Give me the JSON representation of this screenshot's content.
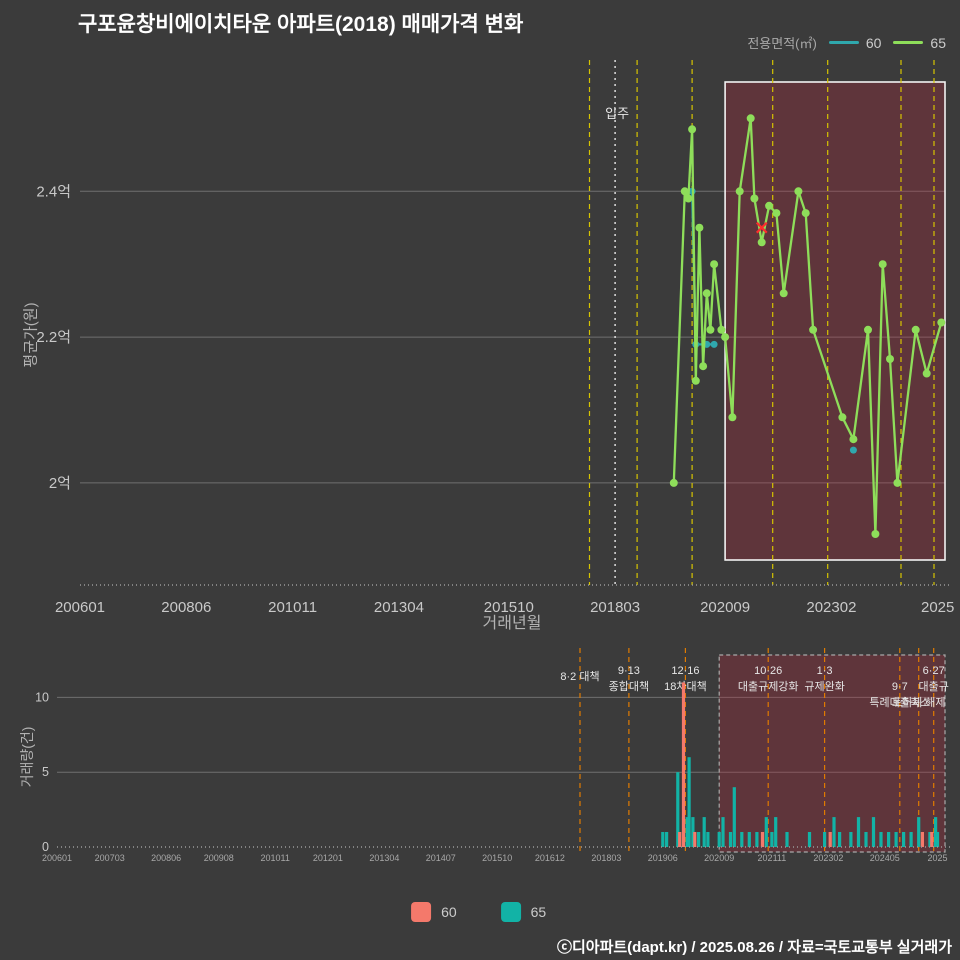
{
  "page": {
    "title": "구포윤창비에이치타운 아파트(2018) 매매가격 변화",
    "footer": "ⓒ디아파트(dapt.kr) / 2025.08.26 / 자료=국토교통부 실거래가"
  },
  "legend_top": {
    "label": "전용면적(㎡)",
    "items": [
      {
        "name": "60",
        "color": "#2fa8ad"
      },
      {
        "name": "65",
        "color": "#8ede5a"
      }
    ]
  },
  "legend_bottom": {
    "items": [
      {
        "name": "60",
        "color": "#f4796b"
      },
      {
        "name": "65",
        "color": "#12b3a6"
      }
    ]
  },
  "colors": {
    "background": "#3b3b3b",
    "grid": "#6f6f6f",
    "axis_dotted": "#999999",
    "tick_label": "#c9c9c9",
    "small_tick_label": "#a8a8a8",
    "axis_title": "#b3b3b3",
    "policy_line_top": "#d6c400",
    "policy_line_bottom": "#e07b00",
    "movein_line": "#e8e8e8",
    "annotation_text": "#e6e6e6",
    "highlight_fill": "rgba(190,40,60,0.28)",
    "highlight_border_top": "#f2f2f2",
    "highlight_border_bottom": "#a9a9a9",
    "marker_x": "#ff2d2d"
  },
  "chart_data": [
    {
      "type": "line",
      "name": "price-history",
      "ylabel": "평균가(원)",
      "xlabel": "거래년월",
      "x_range": [
        "200601",
        "202509"
      ],
      "x_ticks": [
        {
          "label": "200601",
          "m": "200601"
        },
        {
          "label": "200806",
          "m": "200806"
        },
        {
          "label": "201011",
          "m": "201011"
        },
        {
          "label": "201304",
          "m": "201304"
        },
        {
          "label": "201510",
          "m": "201510"
        },
        {
          "label": "201803",
          "m": "201803"
        },
        {
          "label": "202009",
          "m": "202009"
        },
        {
          "label": "202302",
          "m": "202302"
        },
        {
          "label": "2025",
          "m": "202507"
        }
      ],
      "y_ticks": [
        {
          "label": "2.4억",
          "value": 2.4
        },
        {
          "label": "2.2억",
          "value": 2.2
        },
        {
          "label": "2억",
          "value": 2.0
        }
      ],
      "y_range": [
        1.86,
        2.58
      ],
      "series": [
        {
          "name": "60",
          "color": "#2fa8ad",
          "points": [
            [
              "201912",
              2.4
            ],
            [
              "202001",
              2.19
            ],
            [
              "202004",
              2.19
            ],
            [
              "202006",
              2.19
            ],
            [
              "202308",
              2.045
            ]
          ]
        },
        {
          "name": "65",
          "color": "#8ede5a",
          "points": [
            [
              "201907",
              2.0
            ],
            [
              "201910",
              2.4
            ],
            [
              "201911",
              2.39
            ],
            [
              "201912",
              2.485
            ],
            [
              "202001",
              2.14
            ],
            [
              "202002",
              2.35
            ],
            [
              "202003",
              2.16
            ],
            [
              "202004",
              2.26
            ],
            [
              "202005",
              2.21
            ],
            [
              "202006",
              2.3
            ],
            [
              "202008",
              2.21
            ],
            [
              "202009",
              2.2
            ],
            [
              "202011",
              2.09
            ],
            [
              "202101",
              2.4
            ],
            [
              "202104",
              2.5
            ],
            [
              "202105",
              2.39
            ],
            [
              "202107",
              2.33
            ],
            [
              "202109",
              2.38
            ],
            [
              "202111",
              2.37
            ],
            [
              "202201",
              2.26
            ],
            [
              "202205",
              2.4
            ],
            [
              "202207",
              2.37
            ],
            [
              "202209",
              2.21
            ],
            [
              "202305",
              2.09
            ],
            [
              "202308",
              2.06
            ],
            [
              "202312",
              2.21
            ],
            [
              "202402",
              1.93
            ],
            [
              "202404",
              2.3
            ],
            [
              "202406",
              2.17
            ],
            [
              "202408",
              2.0
            ],
            [
              "202501",
              2.21
            ],
            [
              "202504",
              2.15
            ],
            [
              "202508",
              2.22
            ]
          ]
        }
      ],
      "cancel_marker": {
        "m": "202107",
        "price": 2.35
      },
      "movein": {
        "m": "201803",
        "label": "입주"
      },
      "policy_months": [
        "201708",
        "201809",
        "201912",
        "202110",
        "202301",
        "202409",
        "202506"
      ],
      "highlight_region": {
        "from": "202009",
        "to": "202509"
      }
    },
    {
      "type": "bar",
      "name": "volume",
      "ylabel": "거래량(건)",
      "x_ticks": [
        {
          "label": "200601",
          "m": "200601"
        },
        {
          "label": "200703",
          "m": "200703"
        },
        {
          "label": "200806",
          "m": "200806"
        },
        {
          "label": "200908",
          "m": "200908"
        },
        {
          "label": "201011",
          "m": "201011"
        },
        {
          "label": "201201",
          "m": "201201"
        },
        {
          "label": "201304",
          "m": "201304"
        },
        {
          "label": "201407",
          "m": "201407"
        },
        {
          "label": "201510",
          "m": "201510"
        },
        {
          "label": "201612",
          "m": "201612"
        },
        {
          "label": "201803",
          "m": "201803"
        },
        {
          "label": "201906",
          "m": "201906"
        },
        {
          "label": "202009",
          "m": "202009"
        },
        {
          "label": "202111",
          "m": "202111"
        },
        {
          "label": "202302",
          "m": "202302"
        },
        {
          "label": "202405",
          "m": "202405"
        },
        {
          "label": "2025",
          "m": "202507"
        }
      ],
      "y_ticks": [
        {
          "label": "0",
          "value": 0
        },
        {
          "label": "5",
          "value": 5
        },
        {
          "label": "10",
          "value": 10
        }
      ],
      "y_range": [
        0,
        12.5
      ],
      "bars": [
        {
          "m": "201906",
          "s": "65",
          "v": 1
        },
        {
          "m": "201907",
          "s": "65",
          "v": 1
        },
        {
          "m": "201910",
          "s": "65",
          "v": 5
        },
        {
          "m": "201911",
          "s": "60",
          "v": 1
        },
        {
          "m": "201911",
          "s": "65",
          "v": 2
        },
        {
          "m": "201912",
          "s": "60",
          "v": 11
        },
        {
          "m": "201912",
          "s": "65",
          "v": 2
        },
        {
          "m": "202001",
          "s": "65",
          "v": 6
        },
        {
          "m": "202002",
          "s": "65",
          "v": 2
        },
        {
          "m": "202003",
          "s": "60",
          "v": 1
        },
        {
          "m": "202003",
          "s": "65",
          "v": 1
        },
        {
          "m": "202005",
          "s": "65",
          "v": 2
        },
        {
          "m": "202006",
          "s": "65",
          "v": 1
        },
        {
          "m": "202009",
          "s": "65",
          "v": 1
        },
        {
          "m": "202010",
          "s": "65",
          "v": 2
        },
        {
          "m": "202012",
          "s": "65",
          "v": 1
        },
        {
          "m": "202101",
          "s": "65",
          "v": 4
        },
        {
          "m": "202103",
          "s": "65",
          "v": 1
        },
        {
          "m": "202105",
          "s": "65",
          "v": 1
        },
        {
          "m": "202107",
          "s": "65",
          "v": 1
        },
        {
          "m": "202109",
          "s": "60",
          "v": 1
        },
        {
          "m": "202109",
          "s": "65",
          "v": 2
        },
        {
          "m": "202111",
          "s": "65",
          "v": 1
        },
        {
          "m": "202112",
          "s": "65",
          "v": 2
        },
        {
          "m": "202203",
          "s": "65",
          "v": 1
        },
        {
          "m": "202209",
          "s": "65",
          "v": 1
        },
        {
          "m": "202301",
          "s": "65",
          "v": 1
        },
        {
          "m": "202303",
          "s": "60",
          "v": 1
        },
        {
          "m": "202303",
          "s": "65",
          "v": 2
        },
        {
          "m": "202305",
          "s": "65",
          "v": 1
        },
        {
          "m": "202308",
          "s": "65",
          "v": 1
        },
        {
          "m": "202310",
          "s": "65",
          "v": 2
        },
        {
          "m": "202312",
          "s": "65",
          "v": 1
        },
        {
          "m": "202402",
          "s": "65",
          "v": 2
        },
        {
          "m": "202404",
          "s": "65",
          "v": 1
        },
        {
          "m": "202406",
          "s": "65",
          "v": 1
        },
        {
          "m": "202408",
          "s": "65",
          "v": 1
        },
        {
          "m": "202410",
          "s": "65",
          "v": 1
        },
        {
          "m": "202412",
          "s": "65",
          "v": 1
        },
        {
          "m": "202502",
          "s": "65",
          "v": 2
        },
        {
          "m": "202503",
          "s": "60",
          "v": 1
        },
        {
          "m": "202505",
          "s": "65",
          "v": 1
        },
        {
          "m": "202506",
          "s": "60",
          "v": 1
        },
        {
          "m": "202506",
          "s": "65",
          "v": 2
        },
        {
          "m": "202507",
          "s": "65",
          "v": 1
        }
      ],
      "annotations": [
        {
          "m": "201708",
          "dy": 6,
          "row1": "8·2 대책"
        },
        {
          "m": "201809",
          "row1": "9·13",
          "row2": "종합대책"
        },
        {
          "m": "201912",
          "row1": "12·16",
          "row2": "18차대책"
        },
        {
          "m": "202110",
          "row1": "10·26",
          "row2": "대출규제강화"
        },
        {
          "m": "202301",
          "row1": "1·3",
          "row2": "규제완화"
        },
        {
          "m": "202409",
          "row2": "9·7",
          "row3": "특례대출축소"
        },
        {
          "m": "202502",
          "row3": "토허제 해제"
        },
        {
          "m": "202506",
          "row1": "6·27",
          "row2": "대출규"
        }
      ],
      "policy_months": [
        "201708",
        "201809",
        "201912",
        "202110",
        "202301",
        "202409",
        "202502",
        "202506"
      ],
      "highlight_region": {
        "from": "202009",
        "to": "202509"
      }
    }
  ]
}
